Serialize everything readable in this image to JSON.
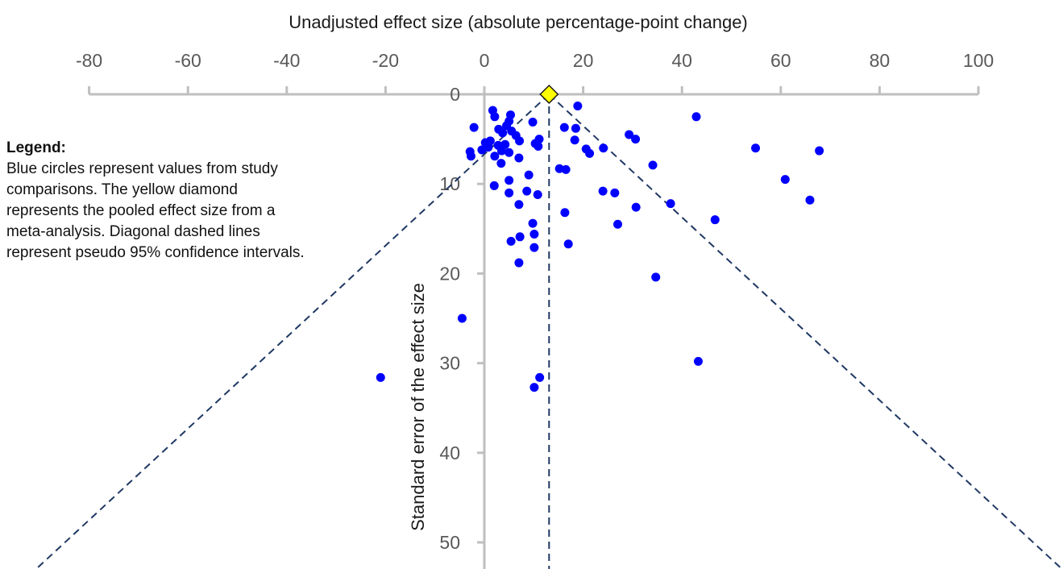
{
  "legend": {
    "title": "Legend:",
    "text": "Blue circles represent values from study comparisons. The yellow diamond represents the pooled effect size from a meta-analysis. Diagonal dashed lines represent pseudo 95% confidence intervals."
  },
  "chart_data": {
    "type": "scatter",
    "title": "",
    "xlabel": "Unadjusted effect size (absolute percentage-point change)",
    "ylabel": "Standard error  of the effect size",
    "xlim": [
      -80,
      100
    ],
    "ylim": [
      0,
      55
    ],
    "y_inverted": true,
    "x_axis_position": "top",
    "x_ticks": [
      -80,
      -60,
      -40,
      -20,
      0,
      20,
      40,
      60,
      80,
      100
    ],
    "y_ticks": [
      0,
      10,
      20,
      30,
      40,
      50
    ],
    "grid": false,
    "colors": {
      "points": "#0000ff",
      "pooled": "#ffff00",
      "lines": "#1f3864",
      "axis": "#bfbfbf"
    },
    "pooled_effect": {
      "x": 13.1,
      "y": 0
    },
    "confidence_interval": "pseudo 95%",
    "points": [
      {
        "x": 1.7,
        "y": 1.8
      },
      {
        "x": 18.9,
        "y": 1.3
      },
      {
        "x": 42.9,
        "y": 2.5
      },
      {
        "x": 2.1,
        "y": 2.5
      },
      {
        "x": 5.3,
        "y": 2.3
      },
      {
        "x": 5.0,
        "y": 3.0
      },
      {
        "x": 9.8,
        "y": 3.1
      },
      {
        "x": -2.1,
        "y": 3.7
      },
      {
        "x": 2.9,
        "y": 3.9
      },
      {
        "x": 4.5,
        "y": 3.5
      },
      {
        "x": 5.5,
        "y": 4.1
      },
      {
        "x": 6.4,
        "y": 4.6
      },
      {
        "x": 3.7,
        "y": 4.3
      },
      {
        "x": 16.2,
        "y": 3.7
      },
      {
        "x": 18.5,
        "y": 3.8
      },
      {
        "x": 29.3,
        "y": 4.5
      },
      {
        "x": 30.6,
        "y": 5.0
      },
      {
        "x": 18.3,
        "y": 5.1
      },
      {
        "x": 11.1,
        "y": 5.0
      },
      {
        "x": 7.1,
        "y": 5.2
      },
      {
        "x": 0.2,
        "y": 5.4
      },
      {
        "x": 1.2,
        "y": 5.2
      },
      {
        "x": 0.8,
        "y": 5.9
      },
      {
        "x": 2.8,
        "y": 5.7
      },
      {
        "x": 4.2,
        "y": 5.6
      },
      {
        "x": 10.3,
        "y": 5.5
      },
      {
        "x": 10.9,
        "y": 5.8
      },
      {
        "x": -0.5,
        "y": 6.2
      },
      {
        "x": -2.9,
        "y": 6.4
      },
      {
        "x": 3.5,
        "y": 6.3
      },
      {
        "x": 5.0,
        "y": 6.5
      },
      {
        "x": 2.1,
        "y": 6.9
      },
      {
        "x": -2.7,
        "y": 6.9
      },
      {
        "x": 7.0,
        "y": 7.1
      },
      {
        "x": 3.4,
        "y": 7.7
      },
      {
        "x": 20.6,
        "y": 6.1
      },
      {
        "x": 21.3,
        "y": 6.6
      },
      {
        "x": 24.1,
        "y": 6.0
      },
      {
        "x": 54.9,
        "y": 6.0
      },
      {
        "x": 67.8,
        "y": 6.3
      },
      {
        "x": 34.1,
        "y": 7.9
      },
      {
        "x": 15.2,
        "y": 8.3
      },
      {
        "x": 16.5,
        "y": 8.4
      },
      {
        "x": 9.0,
        "y": 9.0
      },
      {
        "x": 5.0,
        "y": 9.6
      },
      {
        "x": 60.9,
        "y": 9.5
      },
      {
        "x": 2.0,
        "y": 10.2
      },
      {
        "x": 8.6,
        "y": 10.8
      },
      {
        "x": 5.0,
        "y": 11.0
      },
      {
        "x": 10.8,
        "y": 11.2
      },
      {
        "x": 24.0,
        "y": 10.8
      },
      {
        "x": 26.4,
        "y": 11.0
      },
      {
        "x": 65.9,
        "y": 11.8
      },
      {
        "x": 37.7,
        "y": 12.2
      },
      {
        "x": 7.0,
        "y": 12.3
      },
      {
        "x": 30.7,
        "y": 12.6
      },
      {
        "x": 16.3,
        "y": 13.2
      },
      {
        "x": 46.7,
        "y": 14.0
      },
      {
        "x": 9.8,
        "y": 14.4
      },
      {
        "x": 27.0,
        "y": 14.5
      },
      {
        "x": 7.2,
        "y": 15.9
      },
      {
        "x": 10.1,
        "y": 15.6
      },
      {
        "x": 5.4,
        "y": 16.4
      },
      {
        "x": 17.0,
        "y": 16.7
      },
      {
        "x": 10.1,
        "y": 17.1
      },
      {
        "x": 7.0,
        "y": 18.8
      },
      {
        "x": 34.7,
        "y": 20.4
      },
      {
        "x": -4.5,
        "y": 25.0
      },
      {
        "x": 43.3,
        "y": 29.8
      },
      {
        "x": -21.0,
        "y": 31.6
      },
      {
        "x": 11.2,
        "y": 31.6
      },
      {
        "x": 10.1,
        "y": 32.7
      }
    ]
  }
}
